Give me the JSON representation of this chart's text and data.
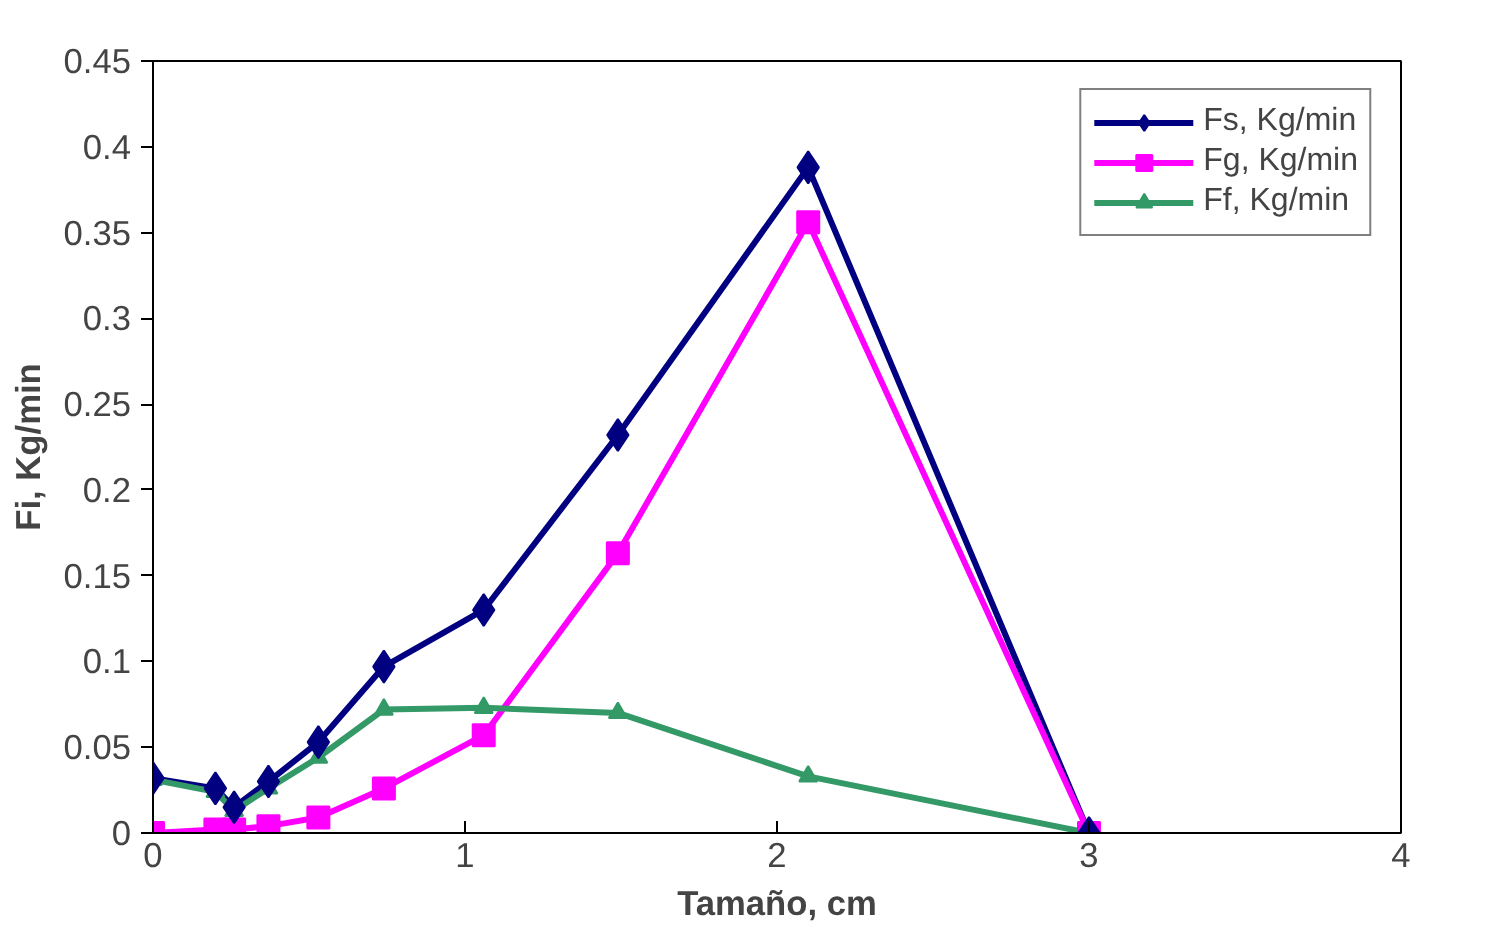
{
  "chart_data": {
    "type": "line",
    "xlabel": "Tamaño, cm",
    "ylabel": "Fi, Kg/min",
    "x": [
      0,
      0.2,
      0.26,
      0.37,
      0.53,
      0.74,
      1.06,
      1.49,
      2.1,
      3
    ],
    "series": [
      {
        "name": "Fs, Kg/min",
        "color": "#000080",
        "marker": "diamond",
        "values": [
          0.032,
          0.026,
          0.015,
          0.03,
          0.053,
          0.097,
          0.13,
          0.232,
          0.388,
          0
        ]
      },
      {
        "name": "Fg, Kg/min",
        "color": "#ff00ff",
        "marker": "square",
        "values": [
          0,
          0.002,
          0.002,
          0.004,
          0.009,
          0.026,
          0.057,
          0.163,
          0.356,
          0
        ]
      },
      {
        "name": "Ff, Kg/min",
        "color": "#339966",
        "marker": "triangle",
        "values": [
          0.031,
          0.024,
          0.013,
          0.026,
          0.044,
          0.072,
          0.073,
          0.07,
          0.033,
          0
        ]
      }
    ],
    "xlim": [
      0,
      4
    ],
    "ylim": [
      0,
      0.45
    ],
    "xticks": [
      0,
      1,
      2,
      3,
      4
    ],
    "yticks": [
      0,
      {
        "value": 0.05,
        "label": "0.05"
      },
      {
        "value": 0.1,
        "label": "0.1"
      },
      {
        "value": 0.15,
        "label": "0.15"
      },
      {
        "value": 0.2,
        "label": "0.2"
      },
      {
        "value": 0.25,
        "label": "0.25"
      },
      {
        "value": 0.3,
        "label": "0.3"
      },
      {
        "value": 0.35,
        "label": "0.35"
      },
      {
        "value": 0.4,
        "label": "0.4"
      },
      {
        "value": 0.45,
        "label": "0.45"
      }
    ],
    "grid": false,
    "legend": "top right",
    "line_style": "solid"
  }
}
